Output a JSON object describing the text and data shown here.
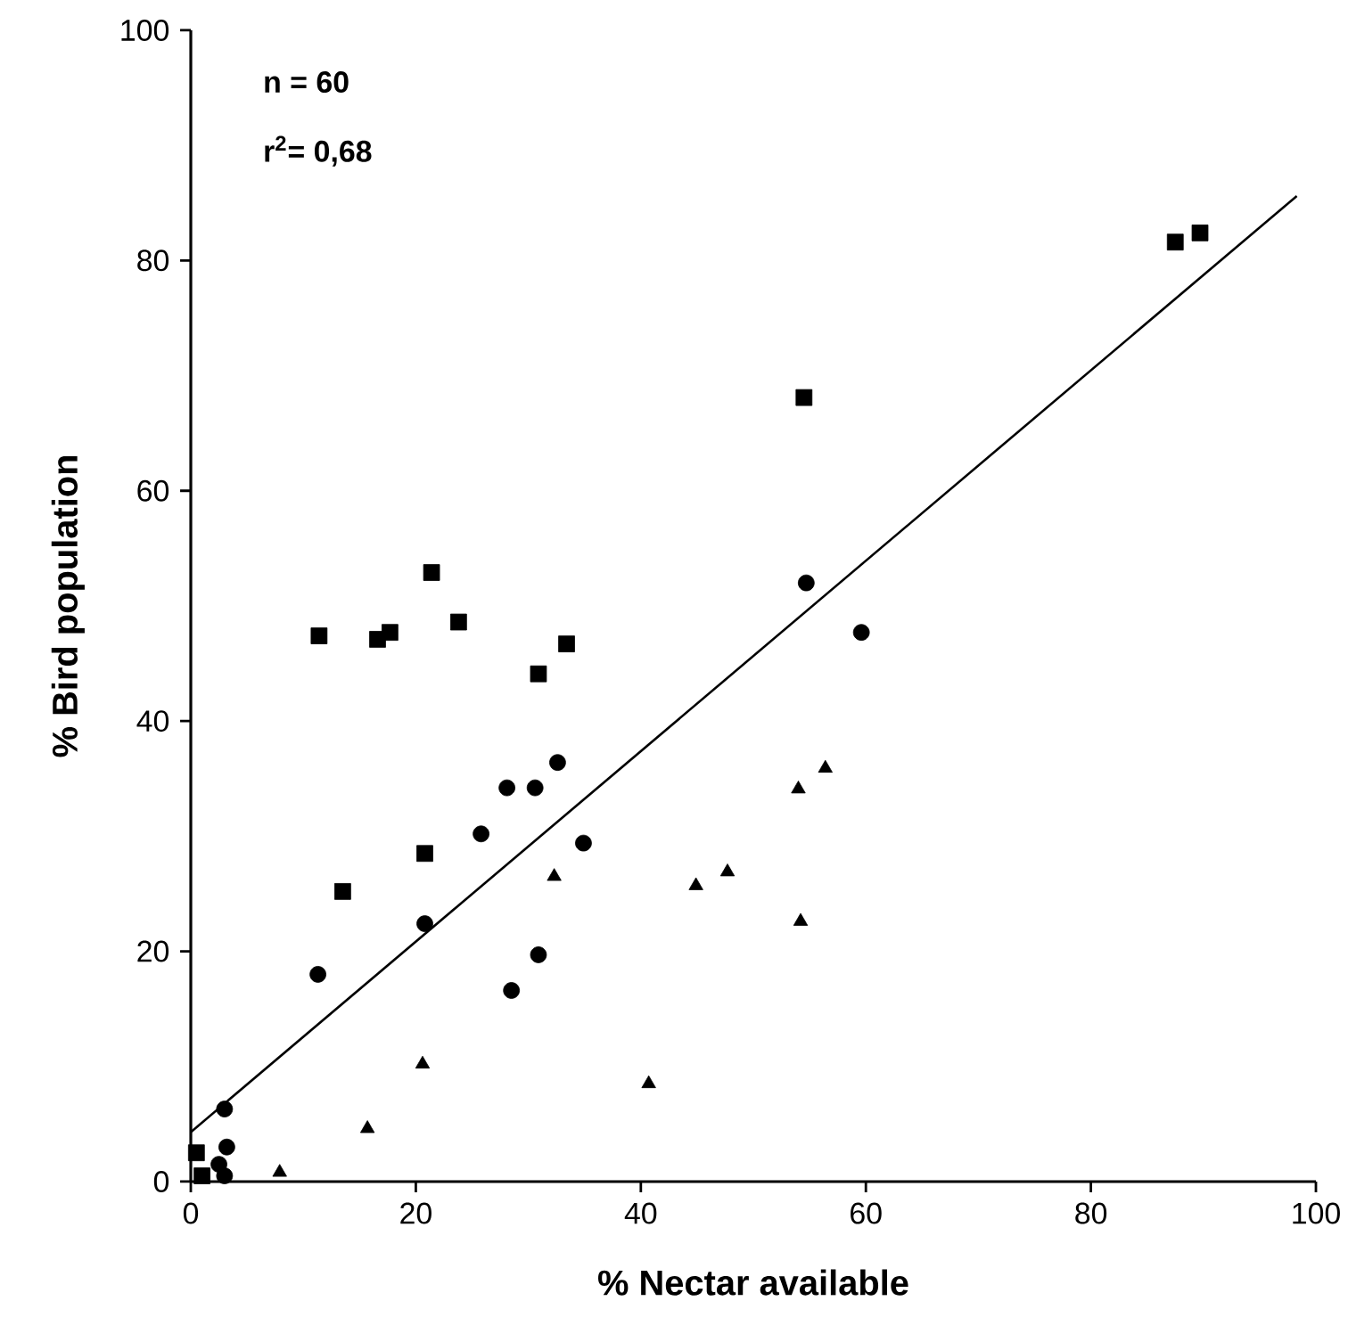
{
  "chart_data": {
    "type": "scatter",
    "xlabel": "% Nectar available",
    "ylabel": "% Bird population",
    "xlim": [
      0,
      100
    ],
    "ylim": [
      0,
      100
    ],
    "xticks": [
      0,
      20,
      40,
      60,
      80,
      100
    ],
    "yticks": [
      0,
      20,
      40,
      60,
      80,
      100
    ],
    "grid": false,
    "annotations": [
      "n = 60",
      "r$^{2}$= 0,68"
    ],
    "series": [
      {
        "color": "#000000",
        "marker": "square",
        "x": [
          11.4,
          16.6,
          17.7,
          21.4,
          23.8,
          30.9,
          33.4,
          20.8,
          13.5,
          54.5,
          87.5,
          89.7
        ],
        "values": [
          47.4,
          47.1,
          47.7,
          52.9,
          48.6,
          44.1,
          46.7,
          28.5,
          25.2,
          68.1,
          81.6,
          82.4
        ]
      },
      {
        "color": "#000000",
        "marker": "circle",
        "x": [
          32.6,
          28.1,
          30.6,
          25.8,
          34.9,
          20.8,
          11.3,
          30.9,
          28.5,
          54.7,
          59.6
        ],
        "values": [
          36.4,
          34.2,
          34.2,
          30.2,
          29.4,
          22.4,
          18.0,
          19.7,
          16.6,
          52.0,
          47.7
        ]
      },
      {
        "color": "#000000",
        "marker": "triangle",
        "x": [
          32.3,
          20.6,
          15.7,
          7.9,
          40.7,
          56.4,
          54.0,
          44.9,
          47.7,
          54.2
        ],
        "values": [
          26.5,
          10.2,
          4.6,
          0.8,
          8.5,
          35.9,
          34.1,
          25.7,
          26.9,
          22.6
        ]
      },
      {
        "color": "#000000",
        "marker": "circle",
        "x": [
          3.0,
          3.2,
          2.5,
          3.0
        ],
        "values": [
          6.3,
          3.0,
          1.5,
          0.5
        ]
      },
      {
        "color": "#000000",
        "marker": "square",
        "x": [
          0.5,
          1.0
        ],
        "values": [
          2.5,
          0.5
        ]
      },
      {
        "type": "line",
        "color": "#000000",
        "marker": "none",
        "line_style": "solid",
        "x": [
          0,
          98.3
        ],
        "values": [
          4.3,
          85.6
        ]
      }
    ]
  }
}
